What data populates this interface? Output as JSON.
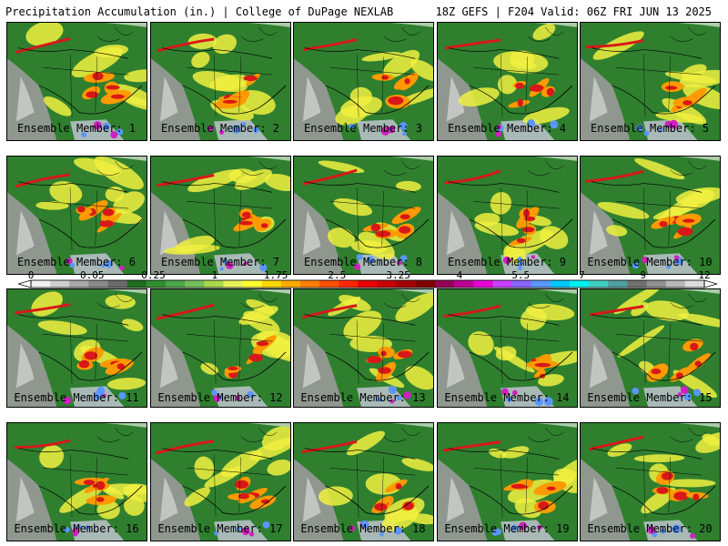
{
  "header": {
    "left": "Precipitation Accumulation (in.) | College of DuPage NEXLAB",
    "right": "18Z GEFS | F204 Valid: 06Z FRI JUN 13 2025"
  },
  "members": [
    {
      "label": "Ensemble Member: 1"
    },
    {
      "label": "Ensemble Member: 2"
    },
    {
      "label": "Ensemble Member: 3"
    },
    {
      "label": "Ensemble Member: 4"
    },
    {
      "label": "Ensemble Member: 5"
    },
    {
      "label": "Ensemble Member: 6"
    },
    {
      "label": "Ensemble Member: 7"
    },
    {
      "label": "Ensemble Member: 8"
    },
    {
      "label": "Ensemble Member: 9"
    },
    {
      "label": "Ensemble Member: 10"
    },
    {
      "label": "Ensemble Member: 11"
    },
    {
      "label": "Ensemble Member: 12"
    },
    {
      "label": "Ensemble Member: 13"
    },
    {
      "label": "Ensemble Member: 14"
    },
    {
      "label": "Ensemble Member: 15"
    },
    {
      "label": "Ensemble Member: 16"
    },
    {
      "label": "Ensemble Member: 17"
    },
    {
      "label": "Ensemble Member: 18"
    },
    {
      "label": "Ensemble Member: 19"
    },
    {
      "label": "Ensemble Member: 20"
    }
  ],
  "colorbar": {
    "tick_labels": [
      "0",
      "0.05",
      "0.25",
      "1",
      "1.75",
      "2.5",
      "3.25",
      "4",
      "5.5",
      "7",
      "9",
      "12"
    ],
    "colors": [
      "#f0f0f0",
      "#cfcfcf",
      "#a9a9a9",
      "#8a8a8a",
      "#6b6b6b",
      "#1f6f1f",
      "#2f8f2f",
      "#4aa64a",
      "#74c05a",
      "#a8d84b",
      "#e8f25b",
      "#ffff30",
      "#ffd700",
      "#ffab00",
      "#ff7f00",
      "#ff5000",
      "#ff2600",
      "#e60000",
      "#c80000",
      "#a50000",
      "#800000",
      "#96005a",
      "#be0096",
      "#e600d2",
      "#c840ff",
      "#8c64ff",
      "#5a96ff",
      "#00c8ff",
      "#00f0f0",
      "#40d0c0",
      "#4fa0a0",
      "#707070",
      "#909090",
      "#b8b8b8",
      "#dcdcdc"
    ]
  },
  "map_colors": {
    "ocean_gray": "#9a9a9a",
    "land_green": "#2f7f2f",
    "precip_yellow": "#f0f040",
    "precip_orange": "#ff9a00",
    "precip_red": "#d81818",
    "precip_magenta": "#d020c0",
    "border": "#000000"
  }
}
